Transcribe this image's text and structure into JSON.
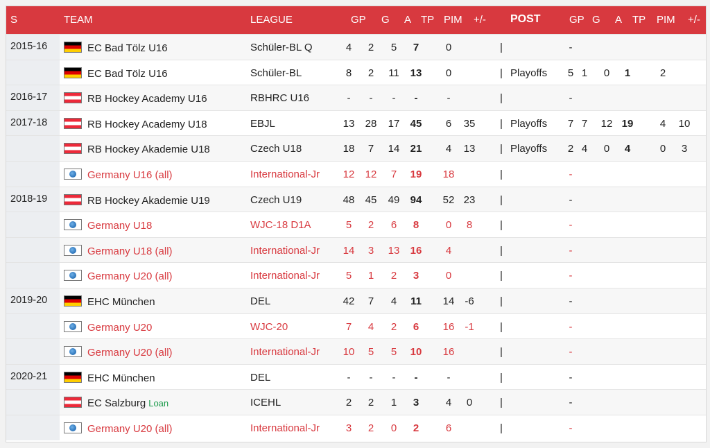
{
  "header": {
    "s": "S",
    "team": "TEAM",
    "league": "LEAGUE",
    "gp": "GP",
    "g": "G",
    "a": "A",
    "tp": "TP",
    "pim": "PIM",
    "pm": "+/-",
    "post": "POST",
    "pgp": "GP",
    "pg": "G",
    "pa": "A",
    "ptp": "TP",
    "ppim": "PIM",
    "ppm": "+/-"
  },
  "separator": "|",
  "loan_label": "Loan",
  "rows": [
    {
      "season": "2015-16",
      "flag": "de",
      "team": "EC Bad Tölz U16",
      "league": "Schüler-BL Q",
      "gp": "4",
      "g": "2",
      "a": "5",
      "tp": "7",
      "pim": "0",
      "pm": "",
      "post": "",
      "pgp": "-",
      "pg": "",
      "pa": "",
      "ptp": "",
      "ppim": "",
      "ppm": "",
      "intl": false
    },
    {
      "season": "",
      "flag": "de",
      "team": "EC Bad Tölz U16",
      "league": "Schüler-BL",
      "gp": "8",
      "g": "2",
      "a": "11",
      "tp": "13",
      "pim": "0",
      "pm": "",
      "post": "Playoffs",
      "pgp": "5",
      "pg": "1",
      "pa": "0",
      "ptp": "1",
      "ppim": "2",
      "ppm": "",
      "intl": false
    },
    {
      "season": "2016-17",
      "flag": "at",
      "team": "RB Hockey Academy U16",
      "league": "RBHRC U16",
      "gp": "-",
      "g": "-",
      "a": "-",
      "tp": "-",
      "pim": "-",
      "pm": "",
      "post": "",
      "pgp": "-",
      "pg": "",
      "pa": "",
      "ptp": "",
      "ppim": "",
      "ppm": "",
      "intl": false
    },
    {
      "season": "2017-18",
      "flag": "at",
      "team": "RB Hockey Academy U18",
      "league": "EBJL",
      "gp": "13",
      "g": "28",
      "a": "17",
      "tp": "45",
      "pim": "6",
      "pm": "35",
      "post": "Playoffs",
      "pgp": "7",
      "pg": "7",
      "pa": "12",
      "ptp": "19",
      "ppim": "4",
      "ppm": "10",
      "intl": false
    },
    {
      "season": "",
      "flag": "at",
      "team": "RB Hockey Akademie U18",
      "league": "Czech U18",
      "gp": "18",
      "g": "7",
      "a": "14",
      "tp": "21",
      "pim": "4",
      "pm": "13",
      "post": "Playoffs",
      "pgp": "2",
      "pg": "4",
      "pa": "0",
      "ptp": "4",
      "ppim": "0",
      "ppm": "3",
      "intl": false
    },
    {
      "season": "",
      "flag": "int",
      "team": "Germany U16 (all)",
      "league": "International-Jr",
      "gp": "12",
      "g": "12",
      "a": "7",
      "tp": "19",
      "pim": "18",
      "pm": "",
      "post": "",
      "pgp": "-",
      "pg": "",
      "pa": "",
      "ptp": "",
      "ppim": "",
      "ppm": "",
      "intl": true
    },
    {
      "season": "2018-19",
      "flag": "at",
      "team": "RB Hockey Akademie U19",
      "league": "Czech U19",
      "gp": "48",
      "g": "45",
      "a": "49",
      "tp": "94",
      "pim": "52",
      "pm": "23",
      "post": "",
      "pgp": "-",
      "pg": "",
      "pa": "",
      "ptp": "",
      "ppim": "",
      "ppm": "",
      "intl": false
    },
    {
      "season": "",
      "flag": "int",
      "team": "Germany U18",
      "league": "WJC-18 D1A",
      "gp": "5",
      "g": "2",
      "a": "6",
      "tp": "8",
      "pim": "0",
      "pm": "8",
      "post": "",
      "pgp": "-",
      "pg": "",
      "pa": "",
      "ptp": "",
      "ppim": "",
      "ppm": "",
      "intl": true
    },
    {
      "season": "",
      "flag": "int",
      "team": "Germany U18 (all)",
      "league": "International-Jr",
      "gp": "14",
      "g": "3",
      "a": "13",
      "tp": "16",
      "pim": "4",
      "pm": "",
      "post": "",
      "pgp": "-",
      "pg": "",
      "pa": "",
      "ptp": "",
      "ppim": "",
      "ppm": "",
      "intl": true
    },
    {
      "season": "",
      "flag": "int",
      "team": "Germany U20 (all)",
      "league": "International-Jr",
      "gp": "5",
      "g": "1",
      "a": "2",
      "tp": "3",
      "pim": "0",
      "pm": "",
      "post": "",
      "pgp": "-",
      "pg": "",
      "pa": "",
      "ptp": "",
      "ppim": "",
      "ppm": "",
      "intl": true
    },
    {
      "season": "2019-20",
      "flag": "de",
      "team": "EHC München",
      "league": "DEL",
      "gp": "42",
      "g": "7",
      "a": "4",
      "tp": "11",
      "pim": "14",
      "pm": "-6",
      "post": "",
      "pgp": "-",
      "pg": "",
      "pa": "",
      "ptp": "",
      "ppim": "",
      "ppm": "",
      "intl": false
    },
    {
      "season": "",
      "flag": "int",
      "team": "Germany U20",
      "league": "WJC-20",
      "gp": "7",
      "g": "4",
      "a": "2",
      "tp": "6",
      "pim": "16",
      "pm": "-1",
      "post": "",
      "pgp": "-",
      "pg": "",
      "pa": "",
      "ptp": "",
      "ppim": "",
      "ppm": "",
      "intl": true
    },
    {
      "season": "",
      "flag": "int",
      "team": "Germany U20 (all)",
      "league": "International-Jr",
      "gp": "10",
      "g": "5",
      "a": "5",
      "tp": "10",
      "pim": "16",
      "pm": "",
      "post": "",
      "pgp": "-",
      "pg": "",
      "pa": "",
      "ptp": "",
      "ppim": "",
      "ppm": "",
      "intl": true
    },
    {
      "season": "2020-21",
      "flag": "de",
      "team": "EHC München",
      "league": "DEL",
      "gp": "-",
      "g": "-",
      "a": "-",
      "tp": "-",
      "pim": "-",
      "pm": "",
      "post": "",
      "pgp": "-",
      "pg": "",
      "pa": "",
      "ptp": "",
      "ppim": "",
      "ppm": "",
      "intl": false
    },
    {
      "season": "",
      "flag": "at",
      "team": "EC Salzburg",
      "loan": true,
      "league": "ICEHL",
      "gp": "2",
      "g": "2",
      "a": "1",
      "tp": "3",
      "pim": "4",
      "pm": "0",
      "post": "",
      "pgp": "-",
      "pg": "",
      "pa": "",
      "ptp": "",
      "ppim": "",
      "ppm": "",
      "intl": false
    },
    {
      "season": "",
      "flag": "int",
      "team": "Germany U20 (all)",
      "league": "International-Jr",
      "gp": "3",
      "g": "2",
      "a": "0",
      "tp": "2",
      "pim": "6",
      "pm": "",
      "post": "",
      "pgp": "-",
      "pg": "",
      "pa": "",
      "ptp": "",
      "ppim": "",
      "ppm": "",
      "intl": true
    }
  ]
}
